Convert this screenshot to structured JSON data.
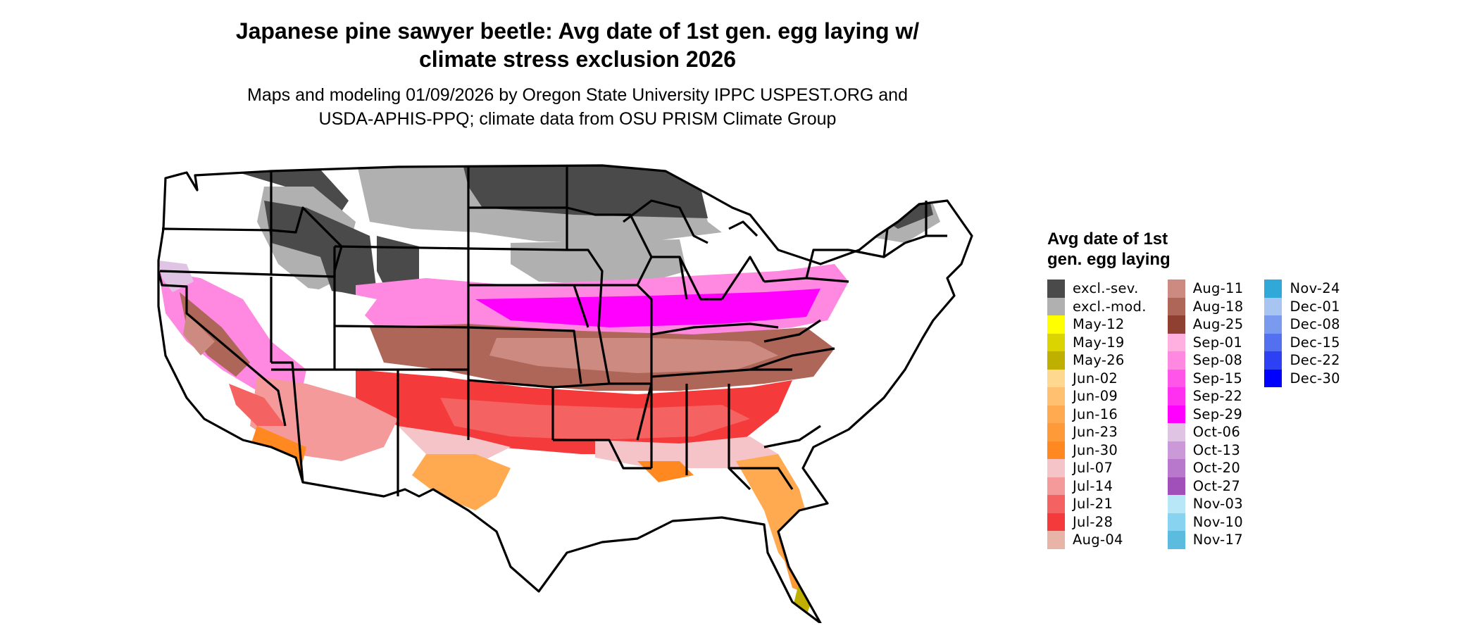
{
  "title": [
    "Japanese pine sawyer beetle: Avg date of 1st gen. egg laying w/",
    "climate stress exclusion 2026"
  ],
  "subtitle": [
    "Maps and modeling 01/09/2026 by Oregon State University IPPC USPEST.ORG and",
    "USDA-APHIS-PPQ; climate data from OSU PRISM Climate Group"
  ],
  "legend": {
    "title": [
      "Avg date of 1st",
      "gen. egg laying"
    ],
    "columns": [
      [
        {
          "label": "excl.-sev.",
          "color": "#4a4a4a"
        },
        {
          "label": "excl.-mod.",
          "color": "#b0b0b0"
        },
        {
          "label": "May-12",
          "color": "#ffff00"
        },
        {
          "label": "May-19",
          "color": "#dcd400"
        },
        {
          "label": "May-26",
          "color": "#bfb000"
        },
        {
          "label": "Jun-02",
          "color": "#ffd890"
        },
        {
          "label": "Jun-09",
          "color": "#ffc070"
        },
        {
          "label": "Jun-16",
          "color": "#ffaa50"
        },
        {
          "label": "Jun-23",
          "color": "#ff9a38"
        },
        {
          "label": "Jun-30",
          "color": "#ff8820"
        },
        {
          "label": "Jul-07",
          "color": "#f4c4c8"
        },
        {
          "label": "Jul-14",
          "color": "#f49a9a"
        },
        {
          "label": "Jul-21",
          "color": "#f46262"
        },
        {
          "label": "Jul-28",
          "color": "#f43a3a"
        },
        {
          "label": "Aug-04",
          "color": "#e8b4a8"
        }
      ],
      [
        {
          "label": "Aug-11",
          "color": "#cc8a80"
        },
        {
          "label": "Aug-18",
          "color": "#ae6658"
        },
        {
          "label": "Aug-25",
          "color": "#904030"
        },
        {
          "label": "Sep-01",
          "color": "#ffb0e0"
        },
        {
          "label": "Sep-08",
          "color": "#ff88e0"
        },
        {
          "label": "Sep-15",
          "color": "#ff55e8"
        },
        {
          "label": "Sep-22",
          "color": "#ff30f0"
        },
        {
          "label": "Sep-29",
          "color": "#ff00ff"
        },
        {
          "label": "Oct-06",
          "color": "#e0c4e4"
        },
        {
          "label": "Oct-13",
          "color": "#cc99d8"
        },
        {
          "label": "Oct-20",
          "color": "#b878cc"
        },
        {
          "label": "Oct-27",
          "color": "#a050b8"
        },
        {
          "label": "Nov-03",
          "color": "#b8e8f8"
        },
        {
          "label": "Nov-10",
          "color": "#88d4f0"
        },
        {
          "label": "Nov-17",
          "color": "#5cbce0"
        }
      ],
      [
        {
          "label": "Nov-24",
          "color": "#30a8d8"
        },
        {
          "label": "Dec-01",
          "color": "#a8c4f0"
        },
        {
          "label": "Dec-08",
          "color": "#7a9af0"
        },
        {
          "label": "Dec-15",
          "color": "#5270f0"
        },
        {
          "label": "Dec-22",
          "color": "#2e40f4"
        },
        {
          "label": "Dec-30",
          "color": "#0000ff"
        }
      ]
    ]
  }
}
